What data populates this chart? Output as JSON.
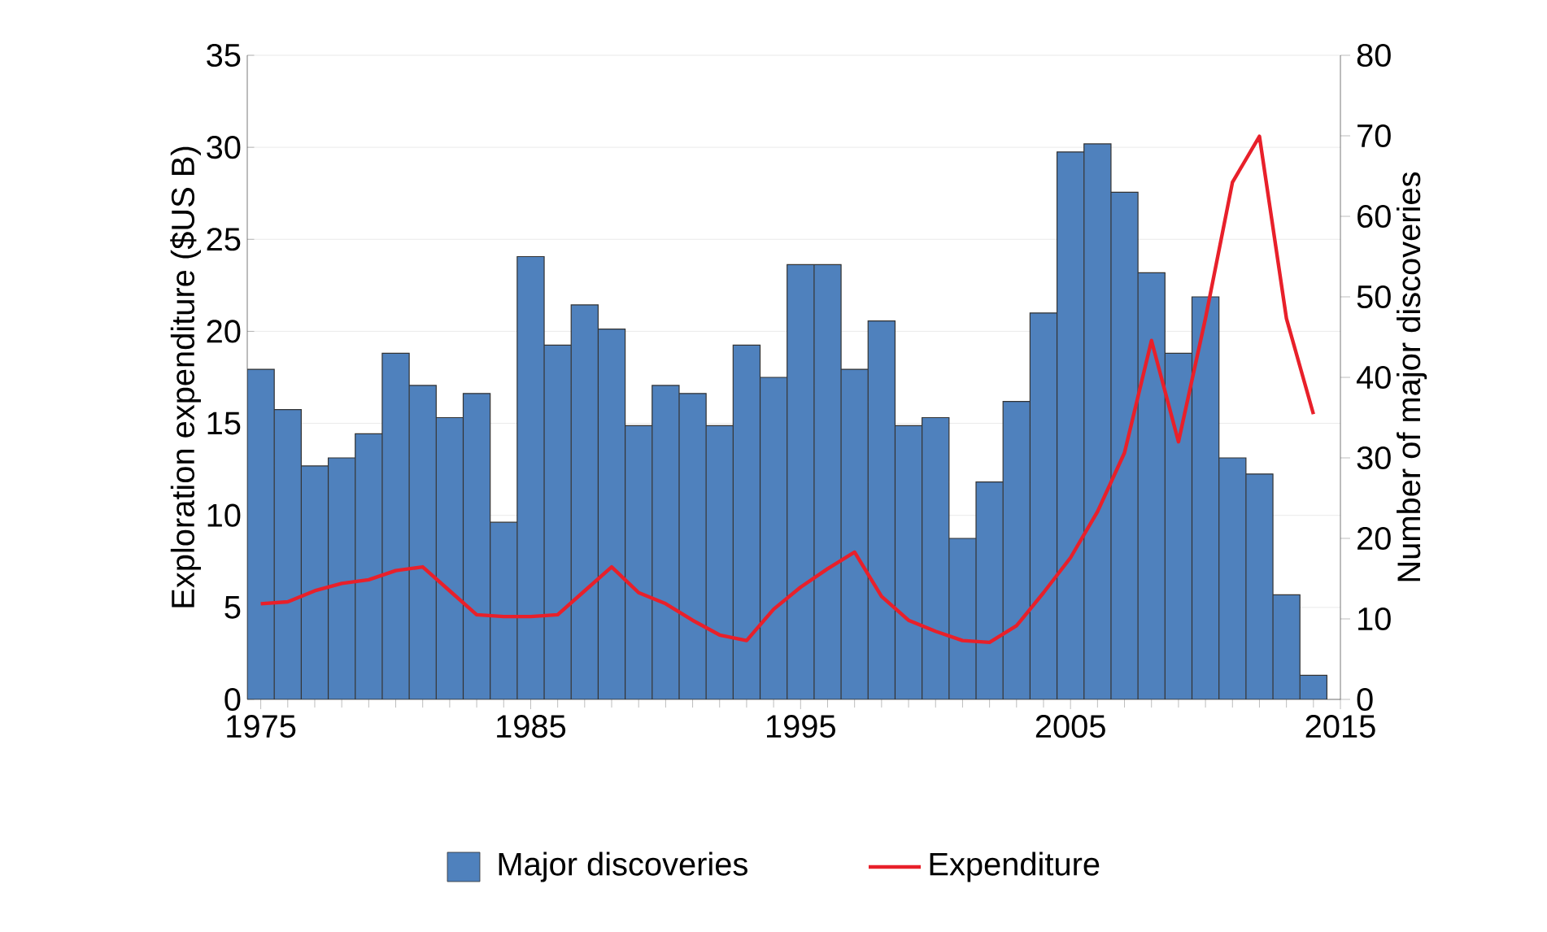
{
  "chart_data": {
    "type": "bar",
    "x": [
      1975,
      1976,
      1977,
      1978,
      1979,
      1980,
      1981,
      1982,
      1983,
      1984,
      1985,
      1986,
      1987,
      1988,
      1989,
      1990,
      1991,
      1992,
      1993,
      1994,
      1995,
      1996,
      1997,
      1998,
      1999,
      2000,
      2001,
      2002,
      2003,
      2004,
      2005,
      2006,
      2007,
      2008,
      2009,
      2010,
      2011,
      2012,
      2013,
      2014
    ],
    "series": [
      {
        "name": "Major discoveries",
        "axis": "y2",
        "color": "#4f81bd",
        "values": [
          41,
          36,
          29,
          30,
          33,
          43,
          39,
          35,
          38,
          22,
          55,
          44,
          49,
          46,
          34,
          39,
          38,
          34,
          44,
          40,
          54,
          54,
          41,
          47,
          34,
          35,
          20,
          27,
          37,
          48,
          68,
          69,
          63,
          53,
          43,
          50,
          30,
          28,
          13,
          3
        ]
      },
      {
        "name": "Expenditure",
        "type": "line",
        "color": "#e8202a",
        "values": [
          5.2,
          5.3,
          5.9,
          6.3,
          6.5,
          7.0,
          7.2,
          5.9,
          4.6,
          4.5,
          4.5,
          4.6,
          5.9,
          7.2,
          5.8,
          5.2,
          4.3,
          3.5,
          3.2,
          4.9,
          6.1,
          7.1,
          8.0,
          5.6,
          4.3,
          3.7,
          3.2,
          3.1,
          4.0,
          5.8,
          7.7,
          10.2,
          13.4,
          19.5,
          14.0,
          20.7,
          28.1,
          30.6,
          20.7,
          15.5
        ]
      }
    ],
    "ylabel": "Exploration expenditure ($US B)",
    "y2label": "Number of major discoveries",
    "xlim": [
      1974.5,
      2015
    ],
    "xticks": [
      1975,
      {
        "value": 1976,
        "label": null
      },
      {
        "value": 1977,
        "label": null
      },
      {
        "value": 1978,
        "label": null
      },
      {
        "value": 1979,
        "label": null
      },
      {
        "value": 1980,
        "label": null
      },
      {
        "value": 1981,
        "label": null
      },
      {
        "value": 1982,
        "label": null
      },
      {
        "value": 1983,
        "label": null
      },
      {
        "value": 1984,
        "label": null
      },
      1985,
      {
        "value": 1986,
        "label": null
      },
      {
        "value": 1987,
        "label": null
      },
      {
        "value": 1988,
        "label": null
      },
      {
        "value": 1989,
        "label": null
      },
      {
        "value": 1990,
        "label": null
      },
      {
        "value": 1991,
        "label": null
      },
      {
        "value": 1992,
        "label": null
      },
      {
        "value": 1993,
        "label": null
      },
      {
        "value": 1994,
        "label": null
      },
      1995,
      {
        "value": 1996,
        "label": null
      },
      {
        "value": 1997,
        "label": null
      },
      {
        "value": 1998,
        "label": null
      },
      {
        "value": 1999,
        "label": null
      },
      {
        "value": 2000,
        "label": null
      },
      {
        "value": 2001,
        "label": null
      },
      {
        "value": 2002,
        "label": null
      },
      {
        "value": 2003,
        "label": null
      },
      {
        "value": 2004,
        "label": null
      },
      2005,
      {
        "value": 2006,
        "label": null
      },
      {
        "value": 2007,
        "label": null
      },
      {
        "value": 2008,
        "label": null
      },
      {
        "value": 2009,
        "label": null
      },
      {
        "value": 2010,
        "label": null
      },
      {
        "value": 2011,
        "label": null
      },
      {
        "value": 2012,
        "label": null
      },
      {
        "value": 2013,
        "label": null
      },
      {
        "value": 2014,
        "label": null
      },
      2015
    ],
    "ylim": [
      0,
      35
    ],
    "yticks": [
      0,
      5,
      10,
      15,
      20,
      25,
      30,
      35
    ],
    "y2lim": [
      0,
      80
    ],
    "y2ticks": [
      0,
      10,
      20,
      30,
      40,
      50,
      60,
      70,
      80
    ],
    "grid": true,
    "legend": "bottom",
    "marker": "none",
    "line_style": "solid"
  }
}
